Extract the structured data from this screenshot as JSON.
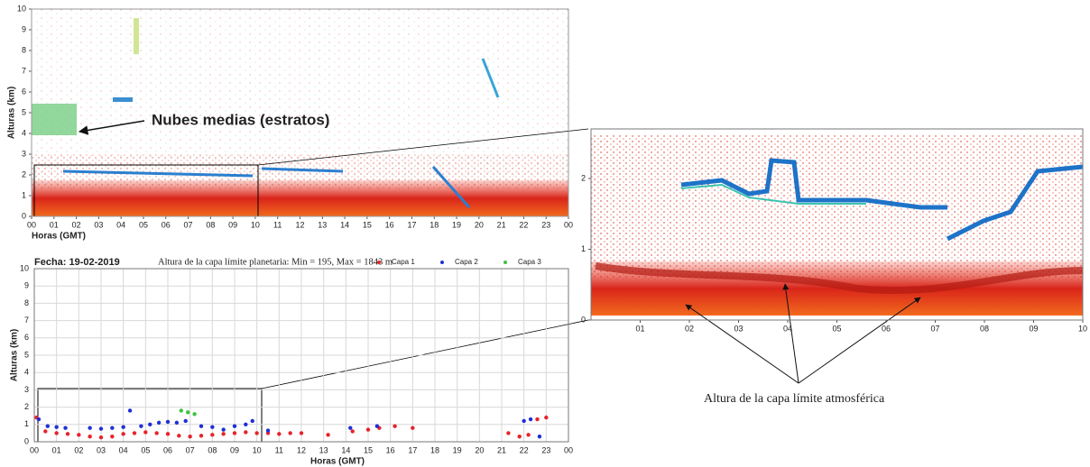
{
  "chart_data": [
    {
      "type": "profile",
      "ylabel": "Alturas (km)",
      "xlabel": "Horas (GMT)",
      "annotation": "Nubes medias (estratos)",
      "xlim": [
        0,
        24
      ],
      "ylim": [
        0,
        10
      ],
      "yticks": [
        0,
        1,
        2,
        3,
        4,
        5,
        6,
        7,
        8,
        9,
        10
      ],
      "xticks": [
        {
          "value": 0,
          "label": "00"
        },
        {
          "value": 1,
          "label": "01"
        },
        {
          "value": 2,
          "label": "02"
        },
        {
          "value": 3,
          "label": "03"
        },
        {
          "value": 4,
          "label": "04"
        },
        {
          "value": 5,
          "label": "05"
        },
        {
          "value": 6,
          "label": "06"
        },
        {
          "value": 7,
          "label": "07"
        },
        {
          "value": 8,
          "label": "08"
        },
        {
          "value": 9,
          "label": "09"
        },
        {
          "value": 10,
          "label": "10"
        },
        {
          "value": 11,
          "label": "11"
        },
        {
          "value": 12,
          "label": "12"
        },
        {
          "value": 13,
          "label": "13"
        },
        {
          "value": 14,
          "label": "14"
        },
        {
          "value": 15,
          "label": "15"
        },
        {
          "value": 16,
          "label": "16"
        },
        {
          "value": 17,
          "label": "17"
        },
        {
          "value": 18,
          "label": "18"
        },
        {
          "value": 19,
          "label": "19"
        },
        {
          "value": 20,
          "label": "20"
        },
        {
          "value": 21,
          "label": "21"
        },
        {
          "value": 22,
          "label": "22"
        },
        {
          "value": 23,
          "label": "23"
        },
        {
          "value": 24,
          "label": "00"
        }
      ]
    },
    {
      "type": "scatter",
      "title": "Fecha: 19-02-2019",
      "subtitle": "Altura de la capa límite planetaria: Min = 195, Max = 1843 m",
      "ylabel": "Alturas (km)",
      "xlabel": "Horas (GMT)",
      "grid": true,
      "legend": "top-right",
      "xlim": [
        0,
        24
      ],
      "ylim": [
        0,
        10
      ],
      "yticks": [
        0,
        1,
        2,
        3,
        4,
        5,
        6,
        7,
        8,
        9,
        10
      ],
      "xticks": [
        {
          "value": 0,
          "label": "00"
        },
        {
          "value": 1,
          "label": "01"
        },
        {
          "value": 2,
          "label": "02"
        },
        {
          "value": 3,
          "label": "03"
        },
        {
          "value": 4,
          "label": "04"
        },
        {
          "value": 5,
          "label": "05"
        },
        {
          "value": 6,
          "label": "06"
        },
        {
          "value": 7,
          "label": "07"
        },
        {
          "value": 8,
          "label": "08"
        },
        {
          "value": 9,
          "label": "09"
        },
        {
          "value": 10,
          "label": "10"
        },
        {
          "value": 11,
          "label": "11"
        },
        {
          "value": 12,
          "label": "12"
        },
        {
          "value": 13,
          "label": "13"
        },
        {
          "value": 14,
          "label": "14"
        },
        {
          "value": 15,
          "label": "15"
        },
        {
          "value": 16,
          "label": "16"
        },
        {
          "value": 17,
          "label": "17"
        },
        {
          "value": 18,
          "label": "18"
        },
        {
          "value": 19,
          "label": "19"
        },
        {
          "value": 20,
          "label": "20"
        },
        {
          "value": 21,
          "label": "21"
        },
        {
          "value": 22,
          "label": "22"
        },
        {
          "value": 23,
          "label": "23"
        },
        {
          "value": 24,
          "label": "00"
        }
      ],
      "series": [
        {
          "name": "Capa 1",
          "color": "#e8222a",
          "x": [
            0.1,
            0.5,
            1,
            1.5,
            2,
            2.5,
            3,
            3.5,
            4,
            4.5,
            5,
            5.5,
            6,
            6.5,
            7,
            7.5,
            8,
            8.5,
            9,
            9.5,
            10,
            10.5,
            11,
            11.5,
            12,
            13.2,
            14.3,
            15,
            15.5,
            16.2,
            17,
            21.3,
            21.8,
            22.2,
            22.6,
            23
          ],
          "values": [
            1.4,
            0.6,
            0.5,
            0.45,
            0.4,
            0.3,
            0.25,
            0.3,
            0.45,
            0.5,
            0.55,
            0.5,
            0.45,
            0.35,
            0.3,
            0.35,
            0.4,
            0.45,
            0.5,
            0.55,
            0.5,
            0.5,
            0.45,
            0.5,
            0.5,
            0.4,
            0.6,
            0.7,
            0.8,
            0.9,
            0.8,
            0.5,
            0.3,
            0.4,
            1.3,
            1.4
          ]
        },
        {
          "name": "Capa 2",
          "color": "#1f2fd6",
          "x": [
            0.2,
            0.6,
            1,
            1.4,
            2.5,
            3,
            3.5,
            4,
            4.3,
            4.8,
            5.2,
            5.6,
            6,
            6.4,
            6.8,
            7.5,
            8,
            8.5,
            9,
            9.5,
            9.8,
            10.5,
            14.2,
            15.4,
            22,
            22.3,
            22.7
          ],
          "values": [
            1.3,
            0.9,
            0.85,
            0.8,
            0.8,
            0.75,
            0.8,
            0.85,
            1.8,
            0.9,
            1.0,
            1.1,
            1.15,
            1.1,
            1.2,
            0.9,
            0.85,
            0.7,
            0.9,
            1.0,
            1.2,
            0.65,
            0.8,
            0.9,
            1.2,
            1.3,
            0.3
          ]
        },
        {
          "name": "Capa 3",
          "color": "#3cc43c",
          "x": [
            6.6,
            6.9,
            7.2
          ],
          "values": [
            1.8,
            1.7,
            1.6
          ]
        }
      ]
    },
    {
      "type": "profile",
      "annotation": "Altura de la capa límite atmosférica",
      "xlim": [
        0,
        10
      ],
      "ylim": [
        0,
        2.7
      ],
      "yticks": [
        0,
        1,
        2
      ],
      "xticks": [
        {
          "value": 1,
          "label": "01"
        },
        {
          "value": 2,
          "label": "02"
        },
        {
          "value": 3,
          "label": "03"
        },
        {
          "value": 4,
          "label": "04"
        },
        {
          "value": 5,
          "label": "05"
        },
        {
          "value": 6,
          "label": "06"
        },
        {
          "value": 7,
          "label": "07"
        },
        {
          "value": 8,
          "label": "08"
        },
        {
          "value": 9,
          "label": "09"
        },
        {
          "value": 10,
          "label": "10"
        }
      ]
    }
  ]
}
